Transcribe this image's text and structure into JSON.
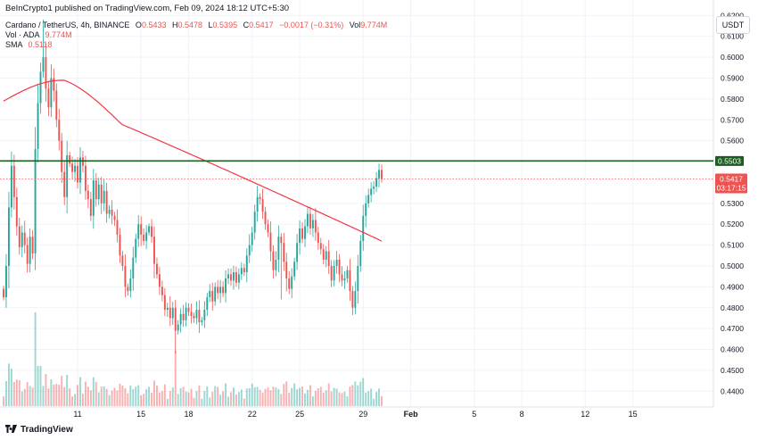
{
  "publisher": "BeInCrypto1 published on TradingView.com, Feb 09, 2024 18:12 UTC+5:30",
  "legend": {
    "symbol": "Cardano / TetherUS, 4h, BINANCE",
    "o_label": "O",
    "o": "0.5433",
    "h_label": "H",
    "h": "0.5478",
    "l_label": "L",
    "l": "0.5395",
    "c_label": "C",
    "c": "0.5417",
    "change": "−0.0017 (−0.31%)",
    "vol_label": "Vol",
    "vol": "9.774M",
    "vol_series": "Vol · ADA",
    "vol_series_value": "9.774M",
    "sma_label": "SMA",
    "sma_value": "0.5118"
  },
  "currency": "USDT",
  "footer": "TradingView",
  "colors": {
    "up": "#26a69a",
    "down": "#ef5350",
    "sma": "#f23645",
    "level": "#1b5e20",
    "grid": "#f0f3fa"
  },
  "chart_data": {
    "type": "candlestick",
    "y_ticks": [
      "0.6200",
      "0.6100",
      "0.6000",
      "0.5900",
      "0.5800",
      "0.5700",
      "0.5600",
      "0.5503",
      "0.5417",
      "0.5300",
      "0.5200",
      "0.5100",
      "0.5000",
      "0.4900",
      "0.4800",
      "0.4700",
      "0.4600",
      "0.4500",
      "0.4400"
    ],
    "x_ticks": [
      {
        "label": "11",
        "bar": 28
      },
      {
        "label": "15",
        "bar": 52
      },
      {
        "label": "18",
        "bar": 70
      },
      {
        "label": "22",
        "bar": 94
      },
      {
        "label": "25",
        "bar": 112
      },
      {
        "label": "29",
        "bar": 136
      },
      {
        "label": "Feb",
        "bar": 154
      },
      {
        "label": "5",
        "bar": 178
      },
      {
        "label": "8",
        "bar": 196
      },
      {
        "label": "12",
        "bar": 220
      },
      {
        "label": "15",
        "bar": 238
      }
    ],
    "ylim": [
      0.435,
      0.624
    ],
    "horizontal_level": "0.5503",
    "last_price": "0.5417",
    "countdown": "03:17:15",
    "sma_value": 0.5118,
    "closes": [
      0.485,
      0.5,
      0.528,
      0.548,
      0.533,
      0.519,
      0.509,
      0.516,
      0.51,
      0.501,
      0.514,
      0.506,
      0.556,
      0.578,
      0.593,
      0.6,
      0.585,
      0.576,
      0.59,
      0.584,
      0.57,
      0.56,
      0.545,
      0.533,
      0.553,
      0.549,
      0.545,
      0.548,
      0.54,
      0.552,
      0.548,
      0.536,
      0.532,
      0.524,
      0.541,
      0.532,
      0.539,
      0.53,
      0.536,
      0.525,
      0.527,
      0.524,
      0.522,
      0.515,
      0.505,
      0.5,
      0.49,
      0.488,
      0.494,
      0.504,
      0.513,
      0.52,
      0.515,
      0.512,
      0.516,
      0.519,
      0.514,
      0.501,
      0.496,
      0.49,
      0.486,
      0.479,
      0.48,
      0.475,
      0.48,
      0.469,
      0.472,
      0.477,
      0.474,
      0.48,
      0.478,
      0.476,
      0.475,
      0.479,
      0.473,
      0.474,
      0.479,
      0.485,
      0.488,
      0.483,
      0.49,
      0.487,
      0.49,
      0.487,
      0.494,
      0.496,
      0.493,
      0.497,
      0.492,
      0.496,
      0.499,
      0.497,
      0.505,
      0.51,
      0.516,
      0.526,
      0.533,
      0.532,
      0.526,
      0.52,
      0.516,
      0.507,
      0.498,
      0.503,
      0.514,
      0.511,
      0.502,
      0.494,
      0.489,
      0.495,
      0.502,
      0.511,
      0.518,
      0.513,
      0.519,
      0.525,
      0.518,
      0.522,
      0.516,
      0.511,
      0.508,
      0.503,
      0.507,
      0.5,
      0.493,
      0.5,
      0.503,
      0.496,
      0.493,
      0.494,
      0.498,
      0.488,
      0.48,
      0.488,
      0.5,
      0.512,
      0.524,
      0.53,
      0.534,
      0.537,
      0.538,
      0.542,
      0.546,
      0.5417
    ]
  }
}
